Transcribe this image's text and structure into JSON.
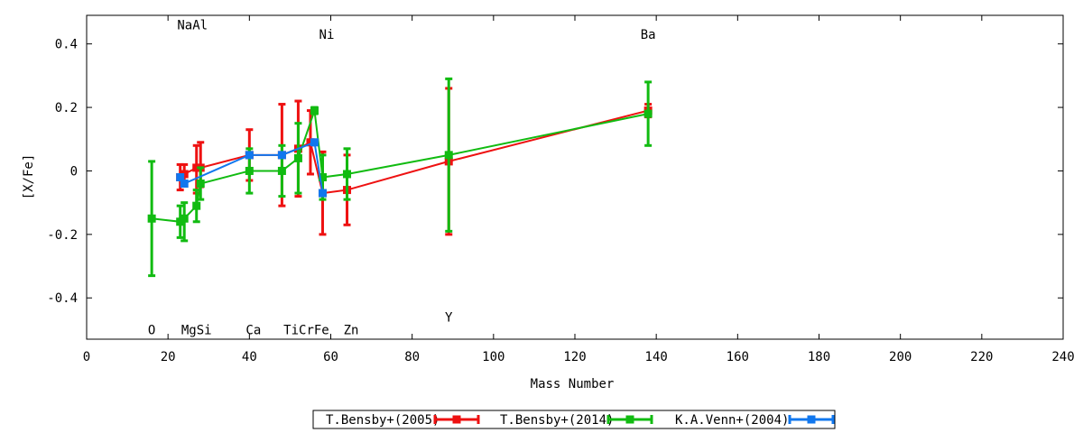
{
  "chart_data": {
    "type": "line",
    "xlabel": "Mass Number",
    "ylabel": "[X/Fe]",
    "xlim": [
      0,
      240
    ],
    "ylim": [
      -0.53,
      0.49
    ],
    "xticks": [
      0,
      20,
      40,
      60,
      80,
      100,
      120,
      140,
      160,
      180,
      200,
      220,
      240
    ],
    "yticks": [
      -0.4,
      -0.2,
      0,
      0.2,
      0.4
    ],
    "ytick_labels": [
      "-0.4",
      "-0.2",
      "0",
      "0.2",
      "0.4"
    ],
    "grid": false,
    "legend_position": "bottom-center",
    "element_labels": [
      {
        "text": "O",
        "x": 16,
        "y": -0.5
      },
      {
        "text": "NaAl",
        "x": 26,
        "y": 0.46
      },
      {
        "text": "MgSi",
        "x": 27,
        "y": -0.5
      },
      {
        "text": "Ca",
        "x": 41,
        "y": -0.5
      },
      {
        "text": "TiCrFe",
        "x": 54,
        "y": -0.5
      },
      {
        "text": "Ni",
        "x": 59,
        "y": 0.43
      },
      {
        "text": "Zn",
        "x": 65,
        "y": -0.5
      },
      {
        "text": "Y",
        "x": 89,
        "y": -0.46
      },
      {
        "text": "Ba",
        "x": 138,
        "y": 0.43
      }
    ],
    "series": [
      {
        "name": "T.Bensby+(2005)",
        "color": "#ee1111",
        "points": [
          {
            "x": 23,
            "y": -0.02,
            "lo": -0.06,
            "hi": 0.02
          },
          {
            "x": 24,
            "y": -0.01,
            "lo": -0.04,
            "hi": 0.02
          },
          {
            "x": 27,
            "y": 0.01,
            "lo": -0.07,
            "hi": 0.08
          },
          {
            "x": 28,
            "y": 0.01,
            "lo": -0.05,
            "hi": 0.09
          },
          {
            "x": 40,
            "y": 0.05,
            "lo": -0.03,
            "hi": 0.13
          },
          {
            "x": 48,
            "y": 0.05,
            "lo": -0.11,
            "hi": 0.21
          },
          {
            "x": 52,
            "y": 0.07,
            "lo": -0.08,
            "hi": 0.22
          },
          {
            "x": 55,
            "y": 0.09,
            "lo": -0.01,
            "hi": 0.19
          },
          {
            "x": 58,
            "y": -0.07,
            "lo": -0.2,
            "hi": 0.06
          },
          {
            "x": 64,
            "y": -0.06,
            "lo": -0.17,
            "hi": 0.05
          },
          {
            "x": 89,
            "y": 0.03,
            "lo": -0.2,
            "hi": 0.26
          },
          {
            "x": 138,
            "y": 0.19,
            "lo": 0.17,
            "hi": 0.21
          }
        ]
      },
      {
        "name": "T.Bensby+(2014)",
        "color": "#11bb11",
        "points": [
          {
            "x": 16,
            "y": -0.15,
            "lo": -0.33,
            "hi": 0.03
          },
          {
            "x": 23,
            "y": -0.16,
            "lo": -0.21,
            "hi": -0.11
          },
          {
            "x": 24,
            "y": -0.15,
            "lo": -0.22,
            "hi": -0.1
          },
          {
            "x": 27,
            "y": -0.11,
            "lo": -0.16,
            "hi": -0.06
          },
          {
            "x": 28,
            "y": -0.04,
            "lo": -0.09,
            "hi": 0.01
          },
          {
            "x": 40,
            "y": 0.0,
            "lo": -0.07,
            "hi": 0.07
          },
          {
            "x": 48,
            "y": 0.0,
            "lo": -0.08,
            "hi": 0.08
          },
          {
            "x": 52,
            "y": 0.04,
            "lo": -0.07,
            "hi": 0.15
          },
          {
            "x": 56,
            "y": 0.19,
            "lo": 0.18,
            "hi": 0.2
          },
          {
            "x": 58,
            "y": -0.02,
            "lo": -0.09,
            "hi": 0.05
          },
          {
            "x": 64,
            "y": -0.01,
            "lo": -0.09,
            "hi": 0.07
          },
          {
            "x": 89,
            "y": 0.05,
            "lo": -0.19,
            "hi": 0.29
          },
          {
            "x": 138,
            "y": 0.18,
            "lo": 0.08,
            "hi": 0.28
          }
        ]
      },
      {
        "name": "K.A.Venn+(2004)",
        "color": "#1177ee",
        "points": [
          {
            "x": 23,
            "y": -0.02,
            "lo": -0.02,
            "hi": -0.02
          },
          {
            "x": 24,
            "y": -0.04,
            "lo": -0.04,
            "hi": -0.04
          },
          {
            "x": 40,
            "y": 0.05,
            "lo": 0.05,
            "hi": 0.05
          },
          {
            "x": 48,
            "y": 0.05,
            "lo": 0.05,
            "hi": 0.05
          },
          {
            "x": 56,
            "y": 0.09,
            "lo": 0.09,
            "hi": 0.09
          },
          {
            "x": 58,
            "y": -0.07,
            "lo": -0.07,
            "hi": -0.07
          }
        ]
      }
    ]
  }
}
